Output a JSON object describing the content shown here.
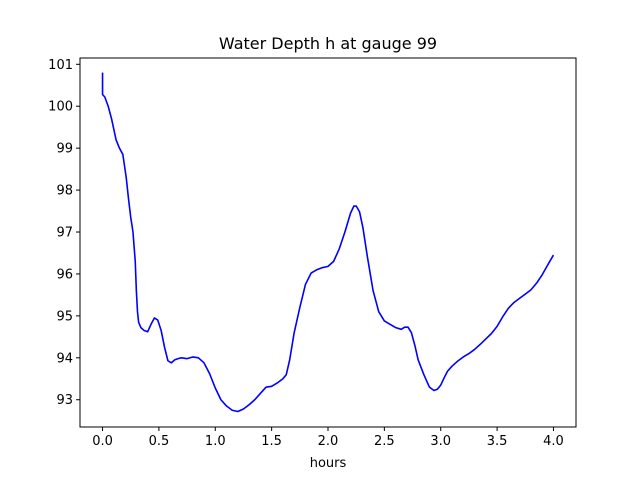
{
  "chart_data": {
    "type": "line",
    "title": "Water Depth h at gauge 99",
    "xlabel": "hours",
    "ylabel": "",
    "xlim": [
      -0.2,
      4.2
    ],
    "ylim": [
      92.35,
      101.15
    ],
    "grid": false,
    "x_ticks": [
      {
        "value": 0.0,
        "label": "0.0"
      },
      {
        "value": 0.5,
        "label": "0.5"
      },
      {
        "value": 1.0,
        "label": "1.0"
      },
      {
        "value": 1.5,
        "label": "1.5"
      },
      {
        "value": 2.0,
        "label": "2.0"
      },
      {
        "value": 2.5,
        "label": "2.5"
      },
      {
        "value": 3.0,
        "label": "3.0"
      },
      {
        "value": 3.5,
        "label": "3.5"
      },
      {
        "value": 4.0,
        "label": "4.0"
      }
    ],
    "y_ticks": [
      {
        "value": 93,
        "label": "93"
      },
      {
        "value": 94,
        "label": "94"
      },
      {
        "value": 95,
        "label": "95"
      },
      {
        "value": 96,
        "label": "96"
      },
      {
        "value": 97,
        "label": "97"
      },
      {
        "value": 98,
        "label": "98"
      },
      {
        "value": 99,
        "label": "99"
      },
      {
        "value": 100,
        "label": "100"
      },
      {
        "value": 101,
        "label": "101"
      }
    ],
    "series": [
      {
        "color": "#0000ff",
        "x": [
          0.0,
          0.0,
          0.0,
          0.02,
          0.05,
          0.08,
          0.12,
          0.15,
          0.18,
          0.21,
          0.23,
          0.25,
          0.27,
          0.29,
          0.3,
          0.31,
          0.32,
          0.34,
          0.37,
          0.4,
          0.43,
          0.46,
          0.49,
          0.52,
          0.55,
          0.58,
          0.61,
          0.64,
          0.67,
          0.7,
          0.75,
          0.8,
          0.85,
          0.9,
          0.95,
          1.0,
          1.05,
          1.1,
          1.15,
          1.2,
          1.25,
          1.3,
          1.35,
          1.4,
          1.45,
          1.5,
          1.55,
          1.6,
          1.63,
          1.66,
          1.7,
          1.75,
          1.8,
          1.85,
          1.9,
          1.95,
          2.0,
          2.05,
          2.1,
          2.15,
          2.2,
          2.23,
          2.25,
          2.28,
          2.31,
          2.35,
          2.4,
          2.45,
          2.5,
          2.55,
          2.6,
          2.65,
          2.68,
          2.71,
          2.74,
          2.77,
          2.8,
          2.85,
          2.9,
          2.94,
          2.97,
          3.0,
          3.03,
          3.06,
          3.1,
          3.15,
          3.2,
          3.25,
          3.3,
          3.35,
          3.4,
          3.45,
          3.5,
          3.55,
          3.6,
          3.65,
          3.7,
          3.75,
          3.8,
          3.85,
          3.9,
          3.95,
          4.0
        ],
        "y": [
          100.8,
          100.3,
          100.28,
          100.22,
          100.0,
          99.7,
          99.2,
          99.0,
          98.85,
          98.3,
          97.8,
          97.35,
          97.0,
          96.3,
          95.6,
          95.1,
          94.85,
          94.72,
          94.65,
          94.62,
          94.8,
          94.95,
          94.9,
          94.65,
          94.25,
          93.93,
          93.88,
          93.95,
          93.98,
          94.0,
          93.98,
          94.02,
          94.0,
          93.88,
          93.62,
          93.28,
          93.0,
          92.85,
          92.75,
          92.72,
          92.78,
          92.88,
          93.0,
          93.15,
          93.3,
          93.32,
          93.4,
          93.5,
          93.6,
          93.95,
          94.6,
          95.2,
          95.75,
          96.02,
          96.1,
          96.15,
          96.18,
          96.3,
          96.6,
          97.0,
          97.45,
          97.62,
          97.62,
          97.48,
          97.1,
          96.4,
          95.6,
          95.1,
          94.88,
          94.8,
          94.72,
          94.68,
          94.73,
          94.73,
          94.6,
          94.3,
          93.95,
          93.6,
          93.3,
          93.22,
          93.25,
          93.35,
          93.52,
          93.68,
          93.8,
          93.92,
          94.02,
          94.1,
          94.2,
          94.32,
          94.45,
          94.58,
          94.75,
          94.98,
          95.18,
          95.32,
          95.42,
          95.52,
          95.62,
          95.78,
          95.98,
          96.22,
          96.45
        ]
      }
    ]
  }
}
